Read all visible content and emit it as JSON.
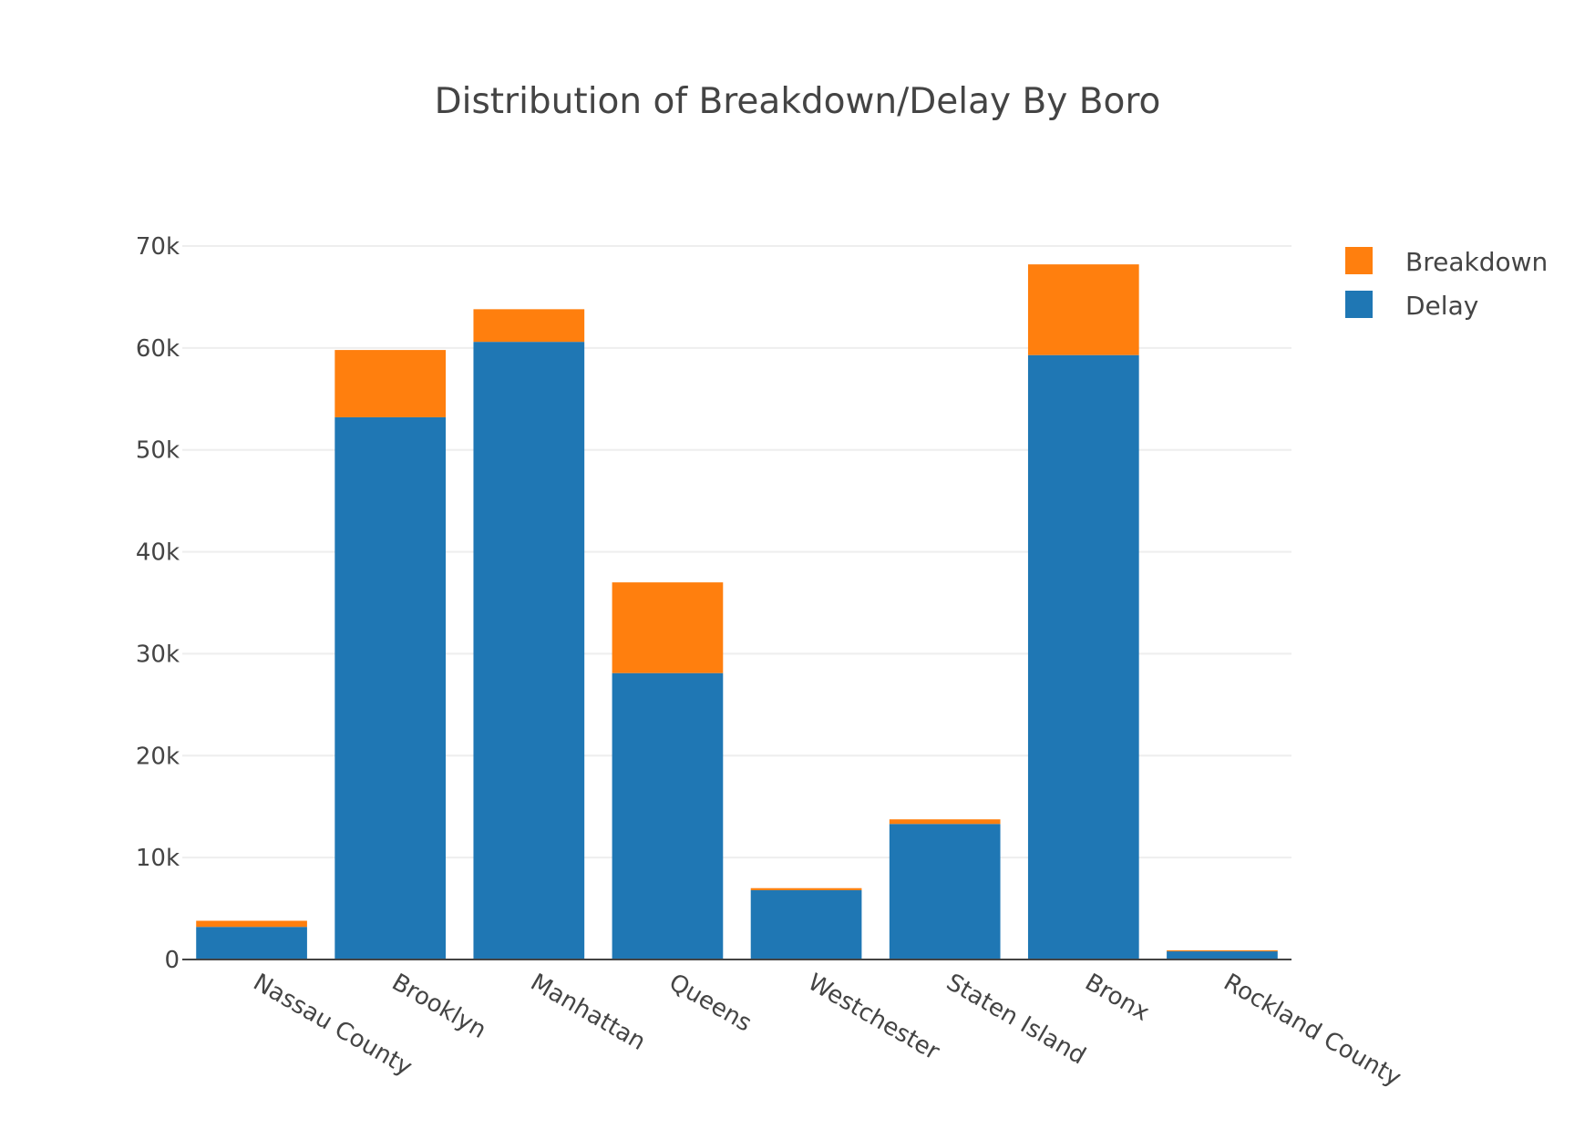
{
  "chart_data": {
    "type": "bar",
    "stacked": true,
    "title": "Distribution of Breakdown/Delay By Boro",
    "xlabel": "",
    "ylabel": "",
    "categories": [
      "Nassau County",
      "Brooklyn",
      "Manhattan",
      "Queens",
      "Westchester",
      "Staten Island",
      "Bronx",
      "Rockland County"
    ],
    "series": [
      {
        "name": "Delay",
        "color": "#1f77b4",
        "values": [
          3200,
          53200,
          60600,
          28100,
          6800,
          13300,
          59300,
          800
        ]
      },
      {
        "name": "Breakdown",
        "color": "#ff7f0e",
        "values": [
          600,
          6600,
          3200,
          8900,
          200,
          450,
          8900,
          100
        ]
      }
    ],
    "ylim": [
      0,
      70000
    ],
    "yticks": [
      0,
      10000,
      20000,
      30000,
      40000,
      50000,
      60000,
      70000
    ],
    "ytick_labels": [
      "0",
      "10k",
      "20k",
      "30k",
      "40k",
      "50k",
      "60k",
      "70k"
    ],
    "grid": true,
    "legend_position": "top-right"
  }
}
